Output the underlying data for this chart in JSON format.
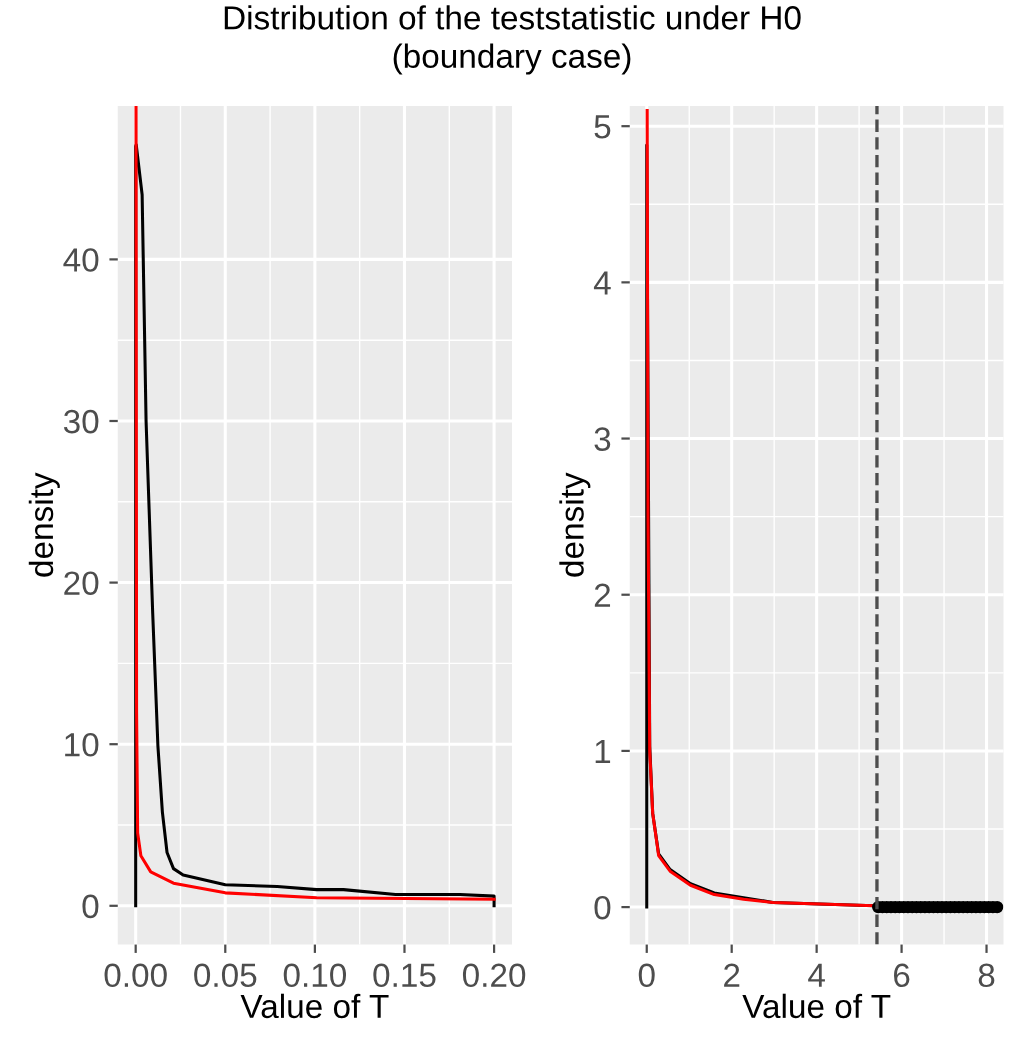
{
  "chart_data": [
    {
      "type": "line",
      "title": "Distribution of the teststatistic under H0\n(boundary case)",
      "xlabel": "Value of T",
      "ylabel": "density",
      "xlim": [
        -0.01,
        0.21
      ],
      "ylim": [
        -2.4,
        49.5
      ],
      "xticks": [
        {
          "value": 0,
          "label": "0.00"
        },
        {
          "value": 0.05,
          "label": "0.05"
        },
        {
          "value": 0.1,
          "label": "0.10"
        },
        {
          "value": 0.15,
          "label": "0.15"
        },
        {
          "value": 0.2,
          "label": "0.20"
        }
      ],
      "yticks": [
        0,
        10,
        20,
        30,
        40
      ],
      "grid": true,
      "series": [
        {
          "color": "#000000",
          "x": [
            0,
            0,
            0.0003,
            0.0036,
            0.0058,
            0.0095,
            0.0124,
            0.0149,
            0.0175,
            0.0211,
            0.0265,
            0.05,
            0.079,
            0.101,
            0.116,
            0.145,
            0.181,
            0.2,
            0.2
          ],
          "values": [
            0,
            47.0,
            47.1,
            44,
            30,
            18.1,
            9.9,
            5.8,
            3.3,
            2.3,
            1.9,
            1.3,
            1.2,
            1.0,
            1.0,
            0.7,
            0.7,
            0.6,
            0
          ]
        },
        {
          "color": "#ff0000",
          "x": [
            0.0002,
            0.0005,
            0.0011,
            0.0029,
            0.0084,
            0.0211,
            0.05,
            0.101,
            0.2
          ],
          "values": [
            49.4,
            12,
            4.5,
            3.1,
            2.1,
            1.4,
            0.8,
            0.5,
            0.4
          ]
        }
      ]
    },
    {
      "type": "line",
      "xlabel": "Value of T",
      "ylabel": "density",
      "xlim": [
        -0.4,
        8.4
      ],
      "ylim": [
        -0.24,
        5.13
      ],
      "xticks": [
        0,
        2,
        4,
        6,
        8
      ],
      "yticks": [
        0,
        1,
        2,
        3,
        4,
        5
      ],
      "grid": true,
      "ref_lines": [
        {
          "axis": "x",
          "value": 5.42,
          "label": null,
          "color": "#4d4d4d",
          "line_style": "dashed"
        }
      ],
      "series": [
        {
          "color": "#000000",
          "x": [
            0,
            0,
            0.07,
            0.14,
            0.28,
            0.55,
            1.03,
            1.59,
            2.28,
            2.97,
            4.07,
            5.17,
            6.5,
            8.3,
            8.3
          ],
          "values": [
            0,
            4.88,
            1.03,
            0.6,
            0.34,
            0.24,
            0.15,
            0.09,
            0.06,
            0.03,
            0.02,
            0.01,
            0,
            0,
            0
          ]
        },
        {
          "color": "#ff0000",
          "x": [
            0.01,
            0.03,
            0.07,
            0.14,
            0.28,
            0.55,
            1.03,
            1.59,
            2.28,
            2.97,
            4.07,
            5.17,
            6.5,
            8.3
          ],
          "values": [
            5.1,
            2.5,
            1.0,
            0.6,
            0.33,
            0.23,
            0.14,
            0.08,
            0.05,
            0.03,
            0.02,
            0.01,
            0,
            0
          ]
        },
        {
          "type": "scatter",
          "color": "#000000",
          "marker": "circle",
          "x": [
            5.45,
            5.55,
            5.65,
            5.75,
            5.85,
            5.95,
            6.05,
            6.15,
            6.25,
            6.35,
            6.45,
            6.55,
            6.65,
            6.75,
            6.85,
            6.95,
            7.05,
            7.15,
            7.25,
            7.35,
            7.45,
            7.55,
            7.65,
            7.75,
            7.85,
            7.95,
            8.05,
            8.15,
            8.25
          ],
          "values": [
            0,
            0,
            0,
            0,
            0,
            0,
            0,
            0,
            0,
            0,
            0,
            0,
            0,
            0,
            0,
            0,
            0,
            0,
            0,
            0,
            0,
            0,
            0,
            0,
            0,
            0,
            0,
            0,
            0
          ]
        }
      ]
    }
  ]
}
